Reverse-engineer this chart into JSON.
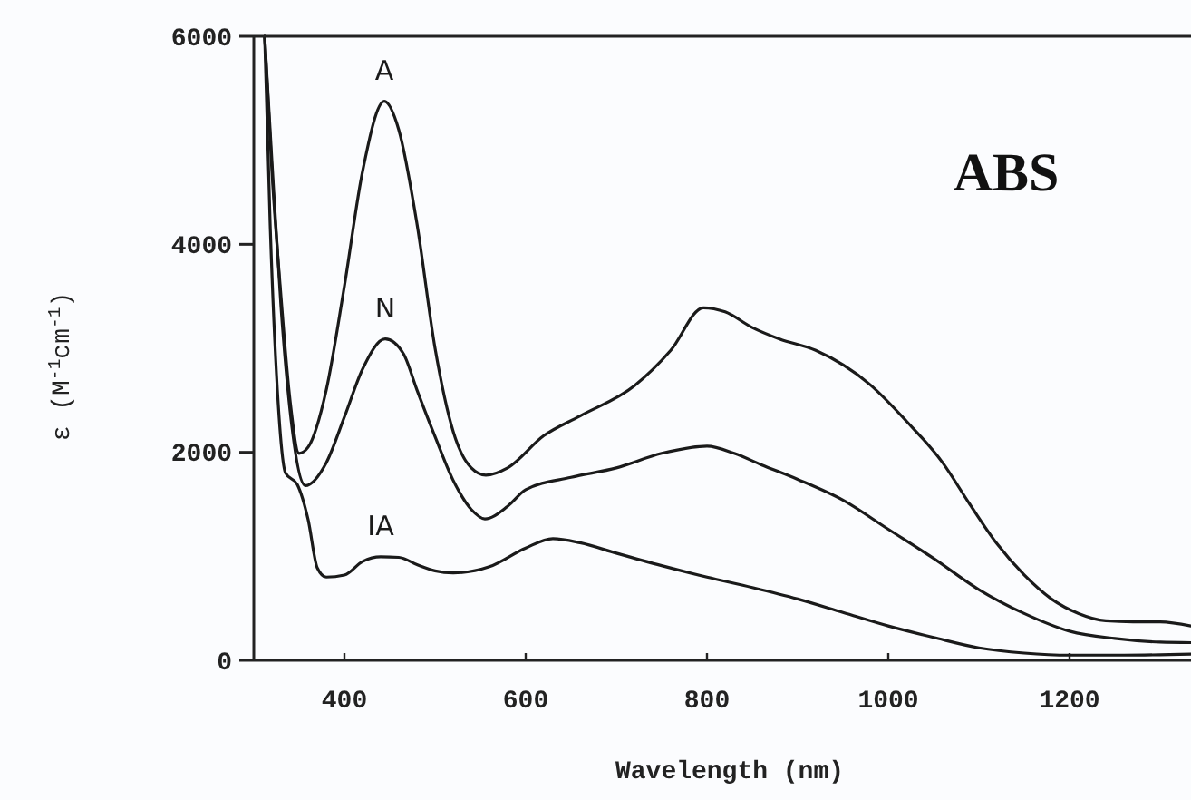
{
  "chart_data": {
    "type": "line",
    "xlabel": "Wavelength (nm)",
    "ylabel": "ε (M$^{-1}$cm$^{-1}$)",
    "xlim": [
      300,
      1334
    ],
    "ylim": [
      0,
      6000
    ],
    "xticks": [
      400,
      600,
      800,
      1000,
      1200
    ],
    "yticks": [
      0,
      2000,
      4000,
      6000
    ],
    "grid": false,
    "legend": false,
    "marker": "none",
    "line_style": "solid",
    "annotations": [
      "ABS"
    ],
    "series": [
      {
        "name": "A",
        "color": "#1a1a1a",
        "x": [
          312,
          320,
          330,
          340,
          350,
          360,
          380,
          400,
          420,
          444,
          460,
          480,
          500,
          520,
          540,
          556,
          580,
          620,
          660,
          720,
          760,
          796,
          820,
          850,
          880,
          920,
          980,
          1020,
          1060,
          1090,
          1120,
          1150,
          1180,
          1210,
          1240,
          1270,
          1300,
          1334
        ],
        "values": [
          6000,
          4700,
          3500,
          2500,
          1990,
          2050,
          2600,
          3600,
          4700,
          5375,
          5100,
          4200,
          3000,
          2200,
          1850,
          1780,
          1850,
          2160,
          2350,
          2640,
          2980,
          3390,
          3350,
          3200,
          3090,
          2980,
          2650,
          2300,
          1900,
          1500,
          1120,
          820,
          590,
          450,
          380,
          370,
          370,
          330
        ]
      },
      {
        "name": "N",
        "color": "#1a1a1a",
        "x": [
          312,
          320,
          330,
          340,
          357,
          380,
          400,
          420,
          445,
          465,
          480,
          500,
          520,
          540,
          555,
          580,
          600,
          650,
          700,
          750,
          800,
          830,
          860,
          900,
          950,
          1000,
          1050,
          1100,
          1150,
          1200,
          1250,
          1300,
          1334
        ],
        "values": [
          6000,
          4800,
          3400,
          2400,
          1680,
          1900,
          2340,
          2800,
          3090,
          2950,
          2600,
          2150,
          1730,
          1450,
          1360,
          1480,
          1640,
          1760,
          1850,
          1990,
          2060,
          1990,
          1880,
          1740,
          1540,
          1260,
          980,
          680,
          450,
          280,
          210,
          175,
          170
        ]
      },
      {
        "name": "IA",
        "color": "#1a1a1a",
        "x": [
          312,
          318,
          326,
          335,
          348,
          360,
          370,
          380,
          400,
          420,
          440,
          460,
          480,
          500,
          520,
          560,
          600,
          630,
          660,
          700,
          750,
          800,
          850,
          900,
          950,
          1000,
          1050,
          1100,
          1150,
          1200,
          1260,
          1334
        ],
        "values": [
          6000,
          4200,
          2600,
          1800,
          1690,
          1350,
          890,
          800,
          820,
          950,
          995,
          990,
          920,
          860,
          840,
          900,
          1080,
          1170,
          1130,
          1030,
          910,
          800,
          700,
          590,
          460,
          330,
          220,
          120,
          70,
          50,
          50,
          60
        ]
      }
    ]
  }
}
